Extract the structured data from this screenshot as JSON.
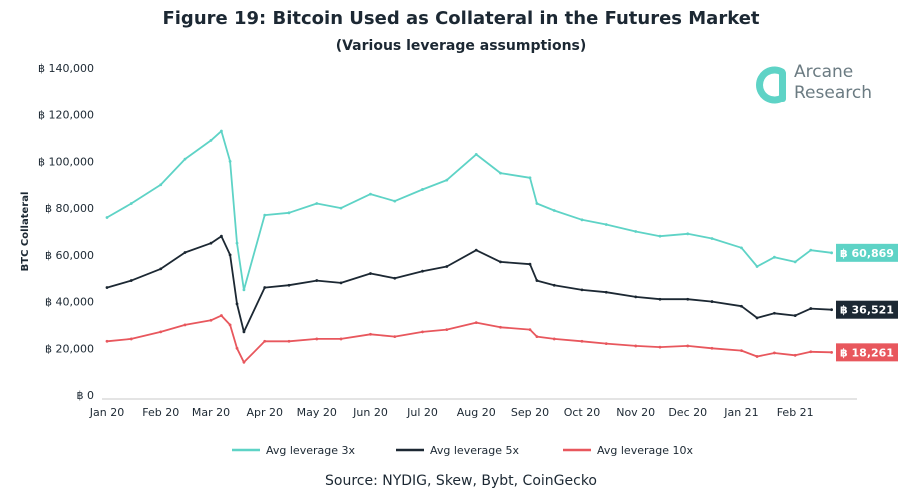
{
  "header": {
    "title": "Figure 19: Bitcoin Used as Collateral in the Futures Market",
    "subtitle": "(Various leverage assumptions)"
  },
  "logo": {
    "line1": "Arcane",
    "line2": "Research",
    "color": "#5ed3c6"
  },
  "source": "Source: NYDIG, Skew, Bybt, CoinGecko",
  "chart_data": {
    "type": "line",
    "title": "Figure 19: Bitcoin Used as Collateral in the Futures Market",
    "subtitle": "(Various leverage assumptions)",
    "ylabel": "BTC Collateral",
    "xlabel": "",
    "ylim": [
      0,
      140000
    ],
    "yticks": [
      0,
      20000,
      40000,
      60000,
      80000,
      100000,
      120000,
      140000
    ],
    "ytick_labels": [
      "฿ 0",
      "฿ 20,000",
      "฿ 40,000",
      "฿ 60,000",
      "฿ 80,000",
      "฿ 100,000",
      "฿ 120,000",
      "฿ 140,000"
    ],
    "xlim": [
      "2020-01-01",
      "2021-02-28"
    ],
    "xticks": [
      "2020-01-01",
      "2020-02-01",
      "2020-03-01",
      "2020-04-01",
      "2020-05-01",
      "2020-06-01",
      "2020-07-01",
      "2020-08-01",
      "2020-09-01",
      "2020-10-01",
      "2020-11-01",
      "2020-12-01",
      "2021-01-01",
      "2021-02-01"
    ],
    "xtick_labels": [
      "Jan 20",
      "Feb 20",
      "Mar 20",
      "Apr 20",
      "May 20",
      "Jun 20",
      "Jul 20",
      "Aug 20",
      "Sep 20",
      "Oct 20",
      "Nov 20",
      "Dec 20",
      "Jan 21",
      "Feb 21"
    ],
    "grid": false,
    "legend_position": "bottom",
    "x": [
      "2020-01-01",
      "2020-01-15",
      "2020-02-01",
      "2020-02-15",
      "2020-03-01",
      "2020-03-07",
      "2020-03-12",
      "2020-03-16",
      "2020-03-20",
      "2020-04-01",
      "2020-04-15",
      "2020-05-01",
      "2020-05-15",
      "2020-06-01",
      "2020-06-15",
      "2020-07-01",
      "2020-07-15",
      "2020-08-01",
      "2020-08-15",
      "2020-09-01",
      "2020-09-05",
      "2020-09-15",
      "2020-10-01",
      "2020-10-15",
      "2020-11-01",
      "2020-11-15",
      "2020-12-01",
      "2020-12-15",
      "2021-01-01",
      "2021-01-10",
      "2021-01-20",
      "2021-02-01",
      "2021-02-10",
      "2021-02-22"
    ],
    "series": [
      {
        "name": "Avg leverage 3x",
        "color": "#5ed3c6",
        "end_label": "฿ 60,869",
        "values": [
          76000,
          82000,
          90000,
          101000,
          109000,
          113000,
          100000,
          65000,
          45000,
          77000,
          78000,
          82000,
          80000,
          86000,
          83000,
          88000,
          92000,
          103000,
          95000,
          93000,
          82000,
          79000,
          75000,
          73000,
          70000,
          68000,
          69000,
          67000,
          63000,
          55000,
          59000,
          57000,
          62000,
          60869
        ]
      },
      {
        "name": "Avg leverage 5x",
        "color": "#1c2833",
        "end_label": "฿ 36,521",
        "values": [
          46000,
          49000,
          54000,
          61000,
          65000,
          68000,
          60000,
          39000,
          27000,
          46000,
          47000,
          49000,
          48000,
          52000,
          50000,
          53000,
          55000,
          62000,
          57000,
          56000,
          49000,
          47000,
          45000,
          44000,
          42000,
          41000,
          41000,
          40000,
          38000,
          33000,
          35000,
          34000,
          37000,
          36521
        ]
      },
      {
        "name": "Avg leverage 10x",
        "color": "#e8575d",
        "end_label": "฿ 18,261",
        "values": [
          23000,
          24000,
          27000,
          30000,
          32000,
          34000,
          30000,
          20000,
          14000,
          23000,
          23000,
          24000,
          24000,
          26000,
          25000,
          27000,
          28000,
          31000,
          29000,
          28000,
          25000,
          24000,
          23000,
          22000,
          21000,
          20500,
          21000,
          20000,
          19000,
          16500,
          18000,
          17000,
          18500,
          18261
        ]
      }
    ]
  }
}
